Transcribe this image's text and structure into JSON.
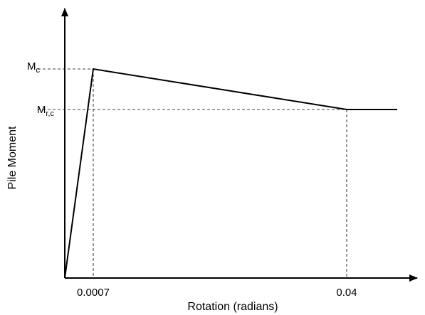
{
  "chart_data": {
    "type": "line",
    "xlabel": "Rotation (radians)",
    "ylabel": "Pile Moment",
    "x_ticks": [
      {
        "value": 0.0007,
        "label": "0.0007"
      },
      {
        "value": 0.04,
        "label": "0.04"
      }
    ],
    "y_ticks": [
      {
        "key": "Mc",
        "base": "M",
        "sub": "c"
      },
      {
        "key": "Mrc",
        "base": "M",
        "sub": "r,c"
      }
    ],
    "series": [
      {
        "points": [
          {
            "x": 0,
            "y": "0"
          },
          {
            "x": 0.0007,
            "y": "Mc"
          },
          {
            "x": 0.04,
            "y": "Mrc"
          },
          {
            "x": "beyond",
            "y": "Mrc"
          }
        ]
      }
    ],
    "grid": false,
    "legend": "none"
  }
}
